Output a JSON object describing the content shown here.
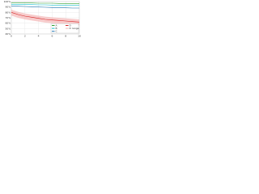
{
  "chart_data": {
    "type": "line",
    "x": [
      0,
      1,
      2,
      3,
      4,
      5,
      6,
      7,
      8,
      9,
      10
    ],
    "xlim": [
      0,
      10
    ],
    "xticks": [
      0,
      2,
      4,
      6,
      8,
      10
    ],
    "ylim": [
      40,
      100
    ],
    "yticks": [
      {
        "value": 40,
        "label": "40%"
      },
      {
        "value": 50,
        "label": "50%"
      },
      {
        "value": 60,
        "label": "60%"
      },
      {
        "value": 70,
        "label": "70%"
      },
      {
        "value": 80,
        "label": "80%"
      },
      {
        "value": 90,
        "label": "90%"
      },
      {
        "value": 100,
        "label": "100%"
      }
    ],
    "grid": true,
    "legend": "lower-right",
    "series": [
      {
        "name": "A",
        "color": "#2ca02c",
        "values": [
          98,
          98,
          97.5,
          97.5,
          97,
          97,
          97,
          96.5,
          96.5,
          96,
          96
        ]
      },
      {
        "name": "B",
        "color": "#17becf",
        "values": [
          95,
          95,
          94.5,
          94.5,
          94,
          94,
          93.5,
          93.5,
          93,
          93,
          93
        ]
      },
      {
        "name": "C",
        "color": "#1f77b4",
        "values": [
          92,
          91.5,
          91,
          90.5,
          90,
          89.5,
          89,
          89,
          88.5,
          88,
          88
        ]
      },
      {
        "name": "D",
        "color": "#d62728",
        "values": [
          80,
          76,
          73,
          71,
          69,
          67,
          66,
          65,
          64,
          63,
          62
        ]
      }
    ],
    "band": {
      "name": "D range",
      "color": "#f4b6b6",
      "upper": [
        85,
        81,
        78,
        76,
        74,
        72,
        71,
        70,
        69,
        68,
        67
      ],
      "lower": [
        74,
        70,
        67,
        65,
        63,
        61,
        60,
        59,
        58,
        57,
        56
      ]
    }
  }
}
